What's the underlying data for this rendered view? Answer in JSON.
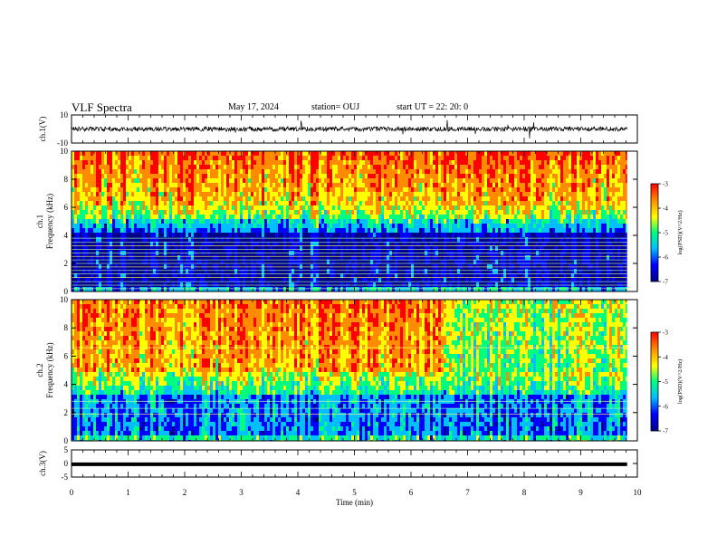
{
  "header": {
    "title": "VLF Spectra",
    "date": "May 17, 2024",
    "station": "station= OUJ",
    "start": "start  UT  =   22: 20: 0"
  },
  "colors": {
    "ch1_trace": "#000000",
    "ch3_trace": "#000000",
    "colormap": [
      "#00008b",
      "#0000ff",
      "#00bfff",
      "#00ff7f",
      "#ffff00",
      "#ff8c00",
      "#ff0000"
    ]
  },
  "chart_data": [
    {
      "type": "line",
      "panel": "ch1-waveform",
      "ylabel": "ch.1(V)",
      "ylim": [
        -10,
        10
      ],
      "yticks": [
        "10",
        "-10"
      ],
      "xlim": [
        0,
        10
      ],
      "baseline_v": 0,
      "series": [
        {
          "values_summary": "noisy signal centred near 0 V with sporadic spikes"
        }
      ]
    },
    {
      "type": "heatmap",
      "panel": "ch1-spectrogram",
      "ylabel_channel": "ch.1",
      "ylabel": "Frequency  (kHz)",
      "ylim": [
        0,
        10
      ],
      "yticks": [
        "10",
        "8",
        "6",
        "4",
        "2",
        "0"
      ],
      "xlim": [
        0,
        9.82
      ],
      "colorbar": {
        "label": "log(PSD)(V^2/Hz)",
        "range": [
          -7,
          -3
        ],
        "ticks": [
          "-3",
          "-4",
          "-5",
          "-6",
          "-7"
        ]
      },
      "lines_khz": [
        0.2,
        0.45,
        0.7,
        1.0,
        1.25,
        1.5,
        1.75,
        2.0,
        2.25,
        2.5,
        2.75,
        3.0,
        3.25,
        3.5,
        3.8
      ]
    },
    {
      "type": "heatmap",
      "panel": "ch2-spectrogram",
      "ylabel_channel": "ch.2",
      "ylabel": "Frequency  (kHz)",
      "ylim": [
        0,
        10
      ],
      "yticks": [
        "10",
        "8",
        "6",
        "4",
        "2",
        "0"
      ],
      "xlim": [
        0,
        9.82
      ],
      "colorbar": {
        "label": "log(PSD)(V^2/Hz)",
        "range": [
          -7,
          -3
        ],
        "ticks": [
          "-3",
          "-4",
          "-5",
          "-6",
          "-7"
        ]
      },
      "lines_khz": [
        1.9,
        2.3,
        2.8,
        6.6
      ]
    },
    {
      "type": "line",
      "panel": "ch3-waveform",
      "ylabel": "ch.3(V)",
      "ylim": [
        -5,
        5
      ],
      "yticks": [
        "5",
        "0",
        "-5"
      ],
      "xlim": [
        0,
        10
      ],
      "xlabel": "Time  (min)",
      "xticks": [
        "0",
        "1",
        "2",
        "3",
        "4",
        "5",
        "6",
        "7",
        "8",
        "9",
        "10"
      ],
      "series": [
        {
          "values_summary": "constant level near -0.3 V"
        }
      ]
    }
  ]
}
